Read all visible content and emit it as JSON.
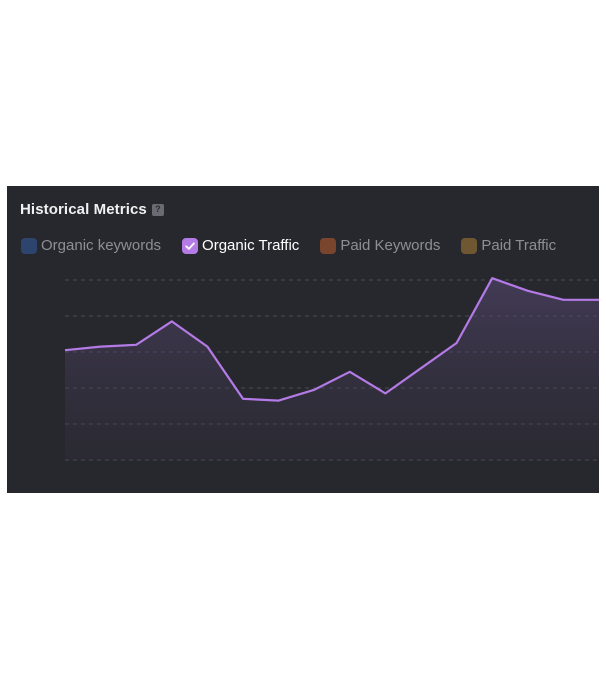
{
  "widget": {
    "title": "Historical Metrics",
    "help_icon": "?",
    "legend": [
      {
        "label": "Organic keywords",
        "color": "#2f4a7a",
        "checked": false,
        "icon": "checkbox-icon"
      },
      {
        "label": "Organic Traffic",
        "color": "#b47ae6",
        "checked": true,
        "icon": "check-icon"
      },
      {
        "label": "Paid Keywords",
        "color": "#8a4a2e",
        "checked": false,
        "icon": "checkbox-icon"
      },
      {
        "label": "Paid Traffic",
        "color": "#7d5f32",
        "checked": false,
        "icon": "checkbox-icon"
      }
    ]
  },
  "chart_data": {
    "type": "area",
    "title": "",
    "xlabel": "",
    "ylabel": "",
    "ylim": [
      0,
      100
    ],
    "grid": "horizontal dashed",
    "series": [
      {
        "name": "Organic Traffic",
        "color": "#b47ae6",
        "values": [
          61,
          63,
          64,
          77,
          63,
          34,
          33,
          39,
          49,
          37,
          51,
          65,
          101,
          94,
          89,
          89
        ]
      }
    ]
  }
}
